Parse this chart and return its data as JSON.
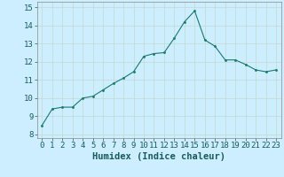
{
  "x": [
    0,
    1,
    2,
    3,
    4,
    5,
    6,
    7,
    8,
    9,
    10,
    11,
    12,
    13,
    14,
    15,
    16,
    17,
    18,
    19,
    20,
    21,
    22,
    23
  ],
  "y": [
    8.5,
    9.4,
    9.5,
    9.5,
    10.0,
    10.1,
    10.45,
    10.8,
    11.1,
    11.45,
    12.3,
    12.45,
    12.5,
    13.3,
    14.2,
    14.8,
    13.2,
    12.85,
    12.1,
    12.1,
    11.85,
    11.55,
    11.45,
    11.55
  ],
  "line_color": "#1a7a6e",
  "marker_color": "#1a7a6e",
  "bg_color": "#cceeff",
  "grid_color": "#c4d8d0",
  "xlabel": "Humidex (Indice chaleur)",
  "ylabel_ticks": [
    8,
    9,
    10,
    11,
    12,
    13,
    14,
    15
  ],
  "xlim": [
    -0.5,
    23.5
  ],
  "ylim": [
    7.8,
    15.3
  ],
  "xtick_labels": [
    "0",
    "1",
    "2",
    "3",
    "4",
    "5",
    "6",
    "7",
    "8",
    "9",
    "10",
    "11",
    "12",
    "13",
    "14",
    "15",
    "16",
    "17",
    "18",
    "19",
    "20",
    "21",
    "22",
    "23"
  ],
  "tick_fontsize": 6.5,
  "label_fontsize": 7.5
}
